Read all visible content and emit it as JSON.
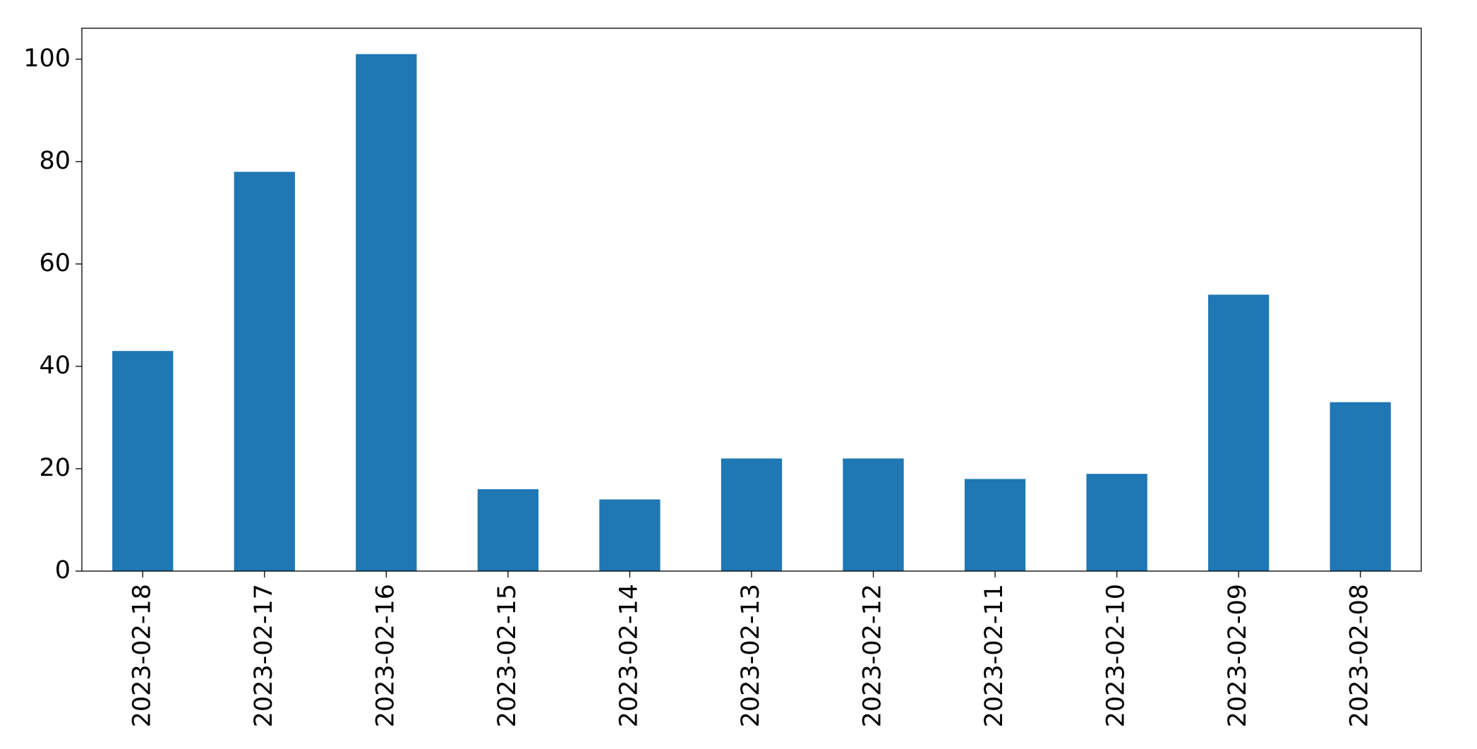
{
  "chart_data": {
    "type": "bar",
    "categories": [
      "2023-02-18",
      "2023-02-17",
      "2023-02-16",
      "2023-02-15",
      "2023-02-14",
      "2023-02-13",
      "2023-02-12",
      "2023-02-11",
      "2023-02-10",
      "2023-02-09",
      "2023-02-08"
    ],
    "values": [
      43,
      78,
      101,
      16,
      14,
      22,
      22,
      18,
      19,
      54,
      33
    ],
    "color": "#1f77b4",
    "ylim": [
      0,
      106.05
    ],
    "yticks": [
      0,
      20,
      40,
      60,
      80,
      100
    ],
    "grid": false
  }
}
